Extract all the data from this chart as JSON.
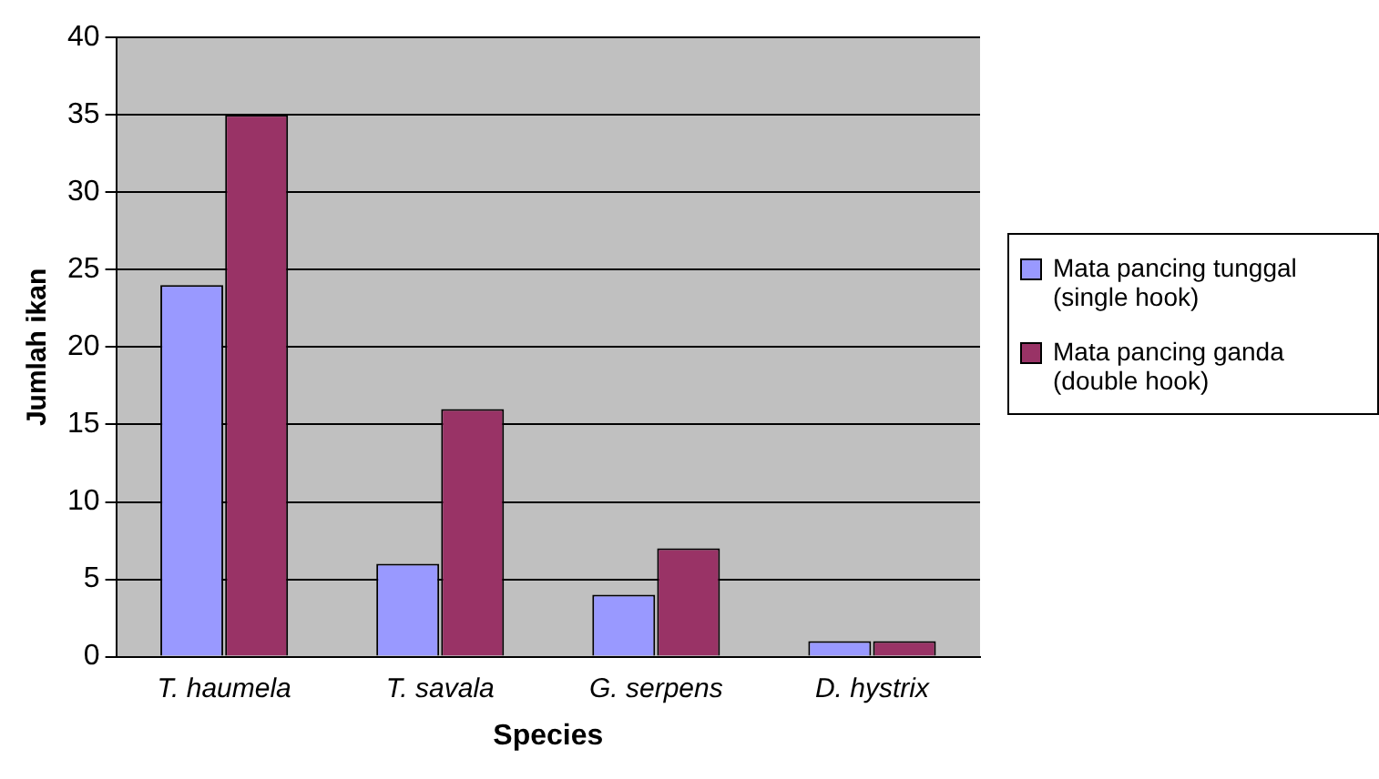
{
  "chart_data": {
    "type": "bar",
    "xlabel": "Species",
    "ylabel": "Jumlah ikan",
    "categories": [
      "T. haumela",
      "T. savala",
      "G. serpens",
      "D. hystrix"
    ],
    "series": [
      {
        "name": "Mata pancing tunggal (single hook)",
        "color": "#9999ff",
        "values": [
          24,
          6,
          4,
          1
        ]
      },
      {
        "name": "Mata pancing ganda (double hook)",
        "color": "#993366",
        "values": [
          35,
          16,
          7,
          1
        ]
      }
    ],
    "ylim": [
      0,
      40
    ],
    "yticks": [
      0,
      5,
      10,
      15,
      20,
      25,
      30,
      35,
      40
    ],
    "grid": "y",
    "legend": "right"
  }
}
